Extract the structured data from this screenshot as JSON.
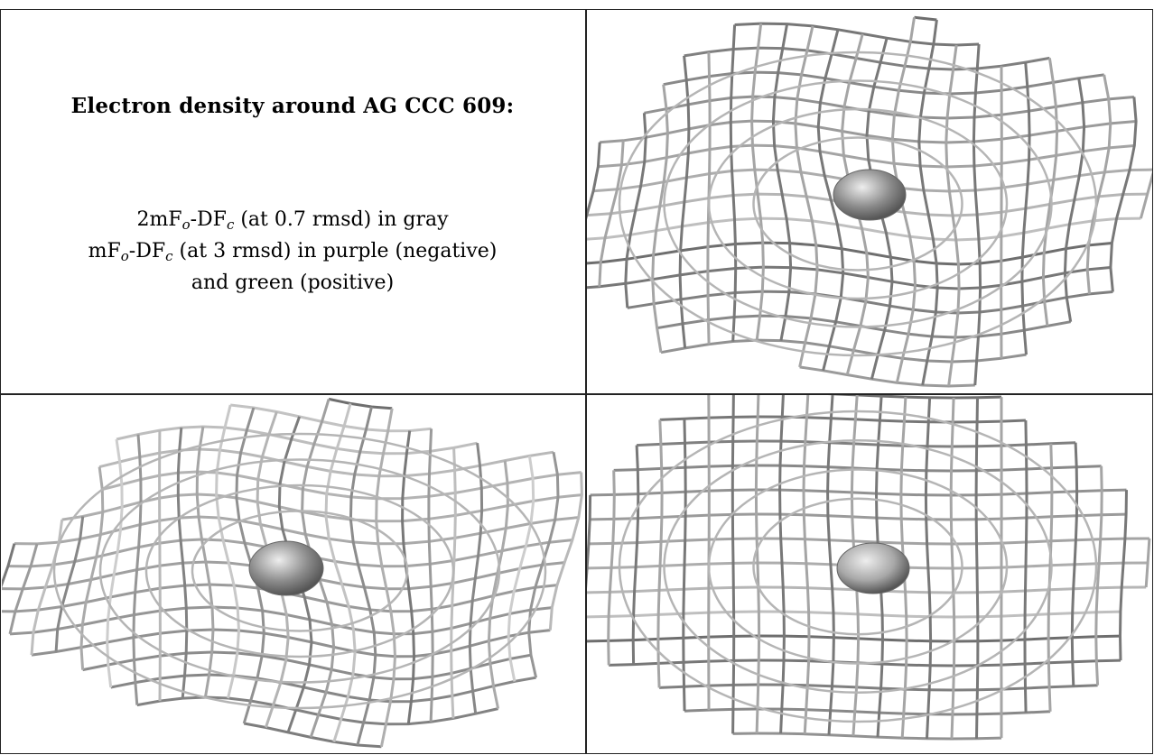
{
  "title": "Electron density around AG CCC 609:",
  "legend": {
    "line1": {
      "prefix": "2mF",
      "sub1": "o",
      "mid": "-DF",
      "sub2": "c",
      "suffix": " (at 0.7 rmsd) in gray"
    },
    "line2": {
      "prefix": "mF",
      "sub1": "o",
      "mid": "-DF",
      "sub2": "c",
      "suffix": " (at 3 rmsd) in purple (negative)"
    },
    "line3": "and green (positive)"
  },
  "panels": [
    {
      "name": "top-right-view",
      "mesh_color": "#9a9a9a",
      "sphere_color": "#8c8c8c"
    },
    {
      "name": "bottom-left-view",
      "mesh_color": "#9a9a9a",
      "sphere_color": "#8c8c8c"
    },
    {
      "name": "bottom-right-view",
      "mesh_color": "#9a9a9a",
      "sphere_color": "#a8a8a8"
    }
  ]
}
